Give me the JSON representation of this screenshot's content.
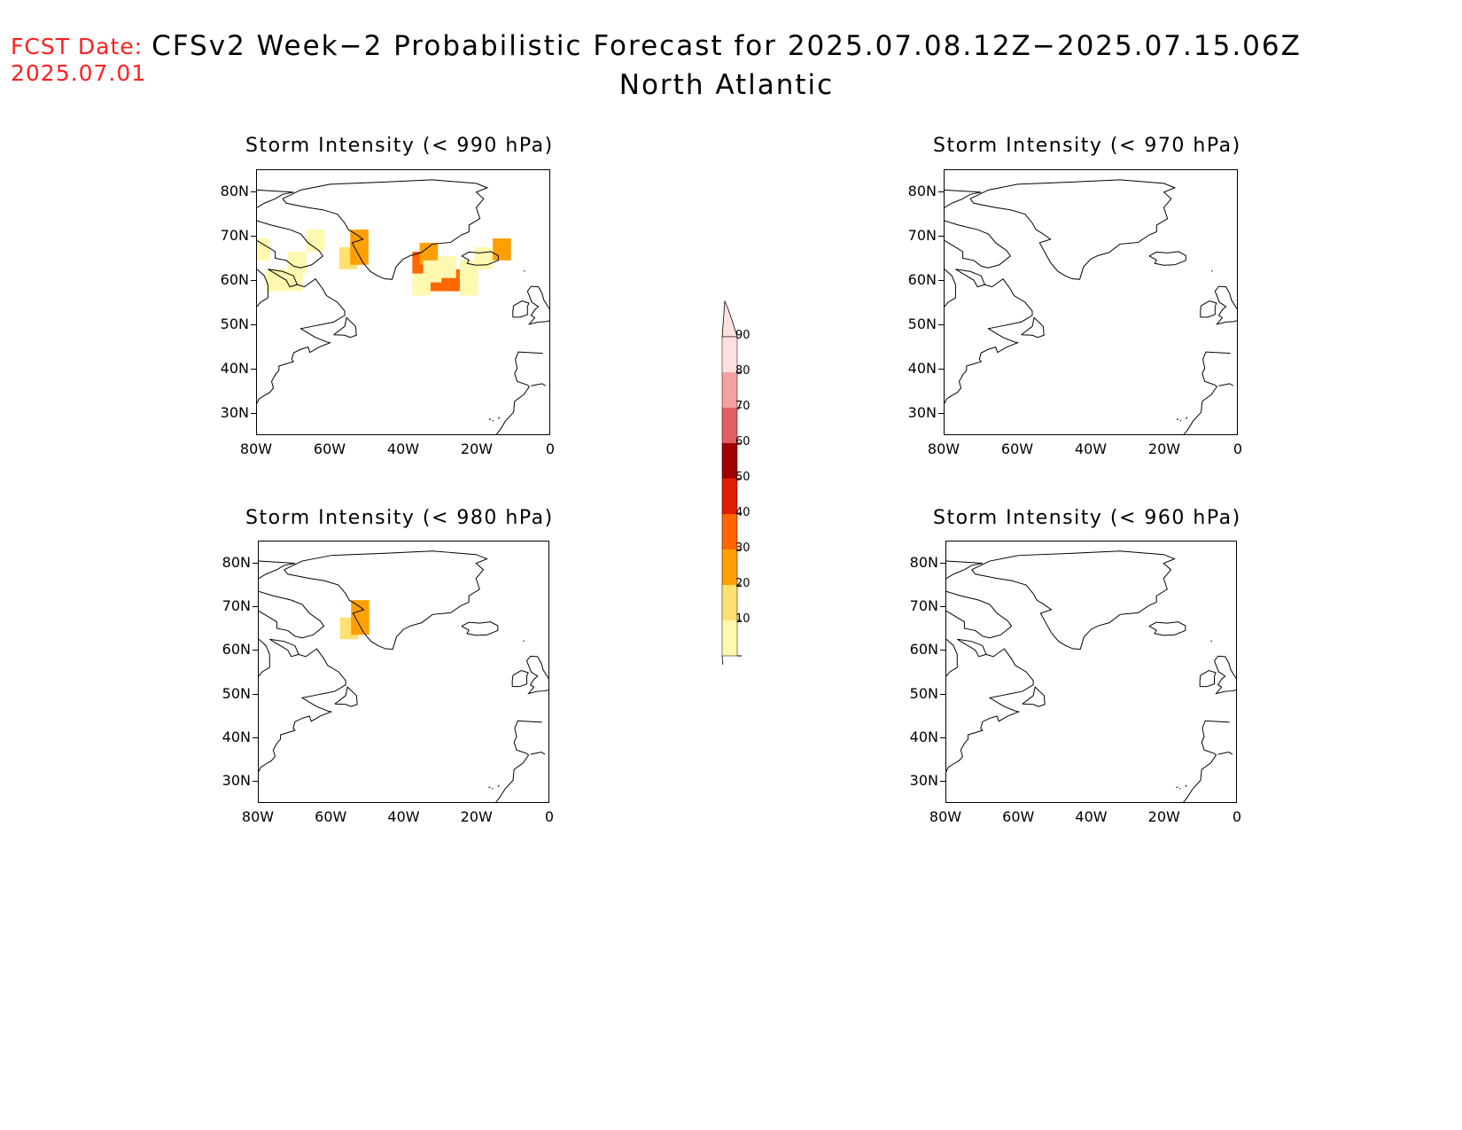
{
  "fcst_date_label": "FCST Date:",
  "fcst_date_value": "2025.07.01",
  "title_line1": "CFSv2 Week−2 Probabilistic Forecast for 2025.07.08.12Z−2025.07.15.06Z",
  "title_line2": "North Atlantic",
  "panels": [
    {
      "title": "Storm Intensity (< 990 hPa)",
      "threshold_hpa": 990
    },
    {
      "title": "Storm Intensity (< 970 hPa)",
      "threshold_hpa": 970
    },
    {
      "title": "Storm Intensity (< 980 hPa)",
      "threshold_hpa": 980
    },
    {
      "title": "Storm Intensity (< 960 hPa)",
      "threshold_hpa": 960
    }
  ],
  "lat_ticks": [
    "80N",
    "70N",
    "60N",
    "50N",
    "40N",
    "30N"
  ],
  "lon_ticks": [
    "80W",
    "60W",
    "40W",
    "20W",
    "0"
  ],
  "colorbar": {
    "labels": [
      "90",
      "80",
      "70",
      "60",
      "50",
      "40",
      "30",
      "20",
      "10"
    ],
    "colors": [
      "#fde0e0",
      "#f4a0a0",
      "#e06060",
      "#a00000",
      "#e01e00",
      "#ff6600",
      "#ffa000",
      "#ffe070",
      "#fff8b0"
    ]
  },
  "probability_cells": {
    "panel_990": [
      {
        "lon": -79,
        "lat": 67,
        "prob": 15
      },
      {
        "lon": -69,
        "lat": 64,
        "prob": 15
      },
      {
        "lon": -64,
        "lat": 69,
        "prob": 15
      },
      {
        "lon": -75,
        "lat": 60,
        "prob": 15
      },
      {
        "lon": -70,
        "lat": 60,
        "prob": 15
      },
      {
        "lon": -55,
        "lat": 65,
        "prob": 25
      },
      {
        "lon": -52,
        "lat": 66,
        "prob": 35
      },
      {
        "lon": -52,
        "lat": 69,
        "prob": 30
      },
      {
        "lon": -35,
        "lat": 64,
        "prob": 45
      },
      {
        "lon": -33,
        "lat": 66,
        "prob": 35
      },
      {
        "lon": -30,
        "lat": 60,
        "prob": 45
      },
      {
        "lon": -25,
        "lat": 60,
        "prob": 45
      },
      {
        "lon": -13,
        "lat": 67,
        "prob": 35
      },
      {
        "lon": -32,
        "lat": 62,
        "prob": 15
      },
      {
        "lon": -28,
        "lat": 63,
        "prob": 15
      },
      {
        "lon": -22,
        "lat": 62,
        "prob": 15
      },
      {
        "lon": -18,
        "lat": 65,
        "prob": 15
      },
      {
        "lon": -35,
        "lat": 59,
        "prob": 15
      },
      {
        "lon": -22,
        "lat": 59,
        "prob": 15
      }
    ],
    "panel_980": [
      {
        "lon": -55,
        "lat": 65,
        "prob": 25
      },
      {
        "lon": -52,
        "lat": 66,
        "prob": 35
      },
      {
        "lon": -52,
        "lat": 69,
        "prob": 30
      }
    ],
    "panel_970": [],
    "panel_960": []
  }
}
